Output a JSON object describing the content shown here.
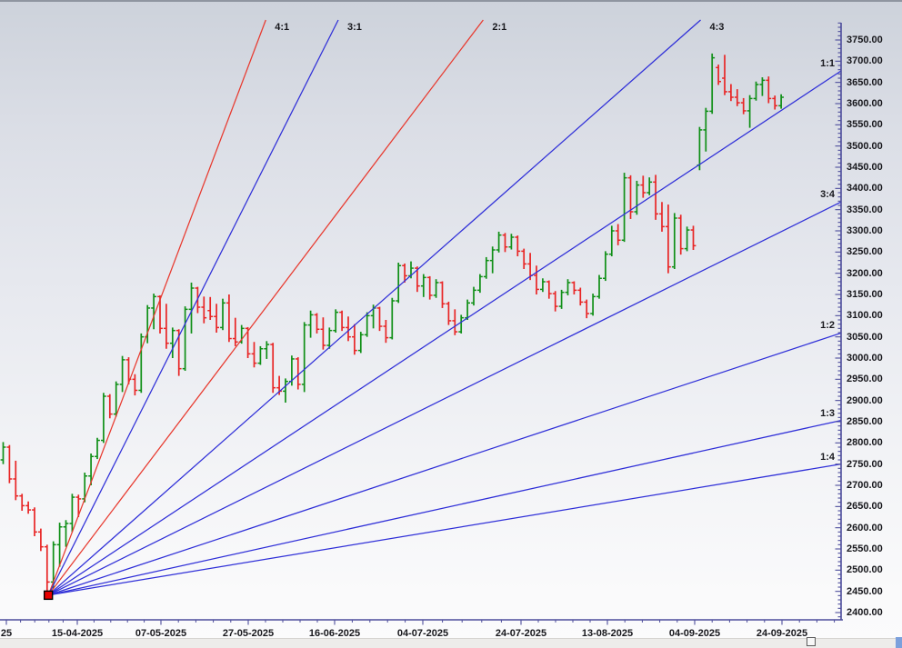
{
  "window": {
    "kind": "trading-chart-panel",
    "footer": {
      "handle_icon": "square-outline",
      "corner_accent_color": "#7ba0dc"
    }
  },
  "chart_data": {
    "type": "ohlc-bar",
    "title": "",
    "grid": "off",
    "legend": "none",
    "y_axis": {
      "side": "right",
      "min": 2400,
      "max": 3750,
      "step": 50,
      "tick_format": "2-decimals",
      "labels": [
        "3750.00",
        "3700.00",
        "3650.00",
        "3600.00",
        "3550.00",
        "3500.00",
        "3450.00",
        "3400.00",
        "3350.00",
        "3300.00",
        "3250.00",
        "3200.00",
        "3150.00",
        "3100.00",
        "3050.00",
        "3000.00",
        "2950.00",
        "2900.00",
        "2850.00",
        "2800.00",
        "2750.00",
        "2700.00",
        "2650.00",
        "2600.00",
        "2550.00",
        "2500.00",
        "2450.00",
        "2400.00"
      ]
    },
    "x_axis": {
      "labels": [
        "25",
        "15-04-2025",
        "07-05-2025",
        "27-05-2025",
        "16-06-2025",
        "04-07-2025",
        "24-07-2025",
        "13-08-2025",
        "04-09-2025",
        "24-09-2025"
      ]
    },
    "gann_fan": {
      "origin_price": 2441,
      "origin_bar_index": 7.2,
      "unit_points_per_bar": 9.78,
      "anchor_marker": {
        "shape": "square",
        "fill": "#e80000",
        "stroke": "#000000"
      },
      "rays": [
        {
          "label": "4:1",
          "ratio": 4.0,
          "color": "#e8392e"
        },
        {
          "label": "3:1",
          "ratio": 3.0,
          "color": "#2f2fd8"
        },
        {
          "label": "2:1",
          "ratio": 2.0,
          "color": "#e8392e"
        },
        {
          "label": "4:3",
          "ratio": 1.3333,
          "color": "#2f2fd8"
        },
        {
          "label": "1:1",
          "ratio": 1.0,
          "color": "#2f2fd8"
        },
        {
          "label": "3:4",
          "ratio": 0.75,
          "color": "#2f2fd8"
        },
        {
          "label": "1:2",
          "ratio": 0.5,
          "color": "#2f2fd8"
        },
        {
          "label": "1:3",
          "ratio": 0.3333,
          "color": "#2f2fd8"
        },
        {
          "label": "1:4",
          "ratio": 0.25,
          "color": "#2f2fd8"
        }
      ]
    },
    "colors": {
      "up": "#0f8f16",
      "down": "#e82525",
      "axis": "#4d4d9c",
      "tick_text": "#17171c"
    },
    "bars_ohlc": [
      [
        2760,
        2802,
        2750,
        2790
      ],
      [
        2790,
        2795,
        2705,
        2715
      ],
      [
        2715,
        2758,
        2665,
        2675
      ],
      [
        2675,
        2680,
        2640,
        2652
      ],
      [
        2652,
        2662,
        2633,
        2642
      ],
      [
        2642,
        2648,
        2580,
        2590
      ],
      [
        2590,
        2598,
        2545,
        2555
      ],
      [
        2555,
        2560,
        2448,
        2472
      ],
      [
        2472,
        2568,
        2456,
        2560
      ],
      [
        2560,
        2612,
        2508,
        2602
      ],
      [
        2602,
        2618,
        2555,
        2610
      ],
      [
        2610,
        2680,
        2590,
        2672
      ],
      [
        2672,
        2678,
        2625,
        2668
      ],
      [
        2668,
        2730,
        2660,
        2722
      ],
      [
        2722,
        2775,
        2700,
        2768
      ],
      [
        2768,
        2812,
        2762,
        2806
      ],
      [
        2806,
        2918,
        2800,
        2910
      ],
      [
        2910,
        2915,
        2858,
        2868
      ],
      [
        2868,
        2945,
        2862,
        2938
      ],
      [
        2938,
        3005,
        2920,
        2996
      ],
      [
        2996,
        3002,
        2938,
        2950
      ],
      [
        2950,
        2962,
        2912,
        2924
      ],
      [
        2924,
        3058,
        2918,
        3050
      ],
      [
        3050,
        3125,
        3035,
        3118
      ],
      [
        3118,
        3152,
        3068,
        3145
      ],
      [
        3145,
        3148,
        3058,
        3070
      ],
      [
        3070,
        3128,
        3022,
        3035
      ],
      [
        3035,
        3072,
        3000,
        3065
      ],
      [
        3065,
        3068,
        2958,
        2975
      ],
      [
        2975,
        3122,
        2970,
        3115
      ],
      [
        3115,
        3178,
        3058,
        3165
      ],
      [
        3165,
        3168,
        3106,
        3120
      ],
      [
        3120,
        3145,
        3082,
        3095
      ],
      [
        3112,
        3144,
        3090,
        3098
      ],
      [
        3098,
        3128,
        3060,
        3072
      ],
      [
        3072,
        3140,
        3066,
        3130
      ],
      [
        3130,
        3150,
        3038,
        3046
      ],
      [
        3046,
        3095,
        3028,
        3038
      ],
      [
        3038,
        3078,
        3034,
        3070
      ],
      [
        3070,
        3073,
        3000,
        3010
      ],
      [
        3010,
        3038,
        2978,
        2988
      ],
      [
        2988,
        3028,
        2984,
        3022
      ],
      [
        3022,
        3040,
        2998,
        3032
      ],
      [
        3032,
        3036,
        2918,
        2930
      ],
      [
        2930,
        2958,
        2913,
        2922
      ],
      [
        2922,
        2952,
        2895,
        2945
      ],
      [
        2945,
        3006,
        2935,
        2998
      ],
      [
        2998,
        3002,
        2926,
        2938
      ],
      [
        2938,
        3085,
        2920,
        3078
      ],
      [
        3078,
        3112,
        3048,
        3102
      ],
      [
        3102,
        3106,
        3058,
        3068
      ],
      [
        3068,
        3096,
        3020,
        3030
      ],
      [
        3030,
        3072,
        3022,
        3065
      ],
      [
        3065,
        3115,
        3060,
        3108
      ],
      [
        3108,
        3112,
        3064,
        3072
      ],
      [
        3072,
        3098,
        3040,
        3050
      ],
      [
        3050,
        3080,
        3008,
        3018
      ],
      [
        3018,
        3062,
        3012,
        3055
      ],
      [
        3055,
        3108,
        3050,
        3100
      ],
      [
        3100,
        3126,
        3070,
        3118
      ],
      [
        3118,
        3121,
        3064,
        3075
      ],
      [
        3075,
        3090,
        3036,
        3048
      ],
      [
        3048,
        3142,
        3044,
        3135
      ],
      [
        3135,
        3225,
        3130,
        3218
      ],
      [
        3218,
        3223,
        3178,
        3194
      ],
      [
        3194,
        3228,
        3188,
        3212
      ],
      [
        3212,
        3216,
        3156,
        3170
      ],
      [
        3170,
        3198,
        3144,
        3190
      ],
      [
        3190,
        3193,
        3138,
        3148
      ],
      [
        3148,
        3186,
        3142,
        3178
      ],
      [
        3178,
        3181,
        3118,
        3128
      ],
      [
        3128,
        3133,
        3078,
        3088
      ],
      [
        3088,
        3115,
        3054,
        3062
      ],
      [
        3062,
        3102,
        3058,
        3095
      ],
      [
        3095,
        3138,
        3090,
        3130
      ],
      [
        3130,
        3168,
        3124,
        3160
      ],
      [
        3160,
        3198,
        3154,
        3192
      ],
      [
        3192,
        3238,
        3187,
        3230
      ],
      [
        3230,
        3263,
        3200,
        3255
      ],
      [
        3255,
        3298,
        3249,
        3290
      ],
      [
        3290,
        3295,
        3250,
        3262
      ],
      [
        3262,
        3293,
        3256,
        3285
      ],
      [
        3285,
        3289,
        3240,
        3252
      ],
      [
        3252,
        3258,
        3210,
        3222
      ],
      [
        3222,
        3248,
        3184,
        3195
      ],
      [
        3195,
        3218,
        3150,
        3162
      ],
      [
        3162,
        3188,
        3156,
        3180
      ],
      [
        3180,
        3183,
        3140,
        3152
      ],
      [
        3152,
        3158,
        3110,
        3122
      ],
      [
        3122,
        3161,
        3116,
        3155
      ],
      [
        3155,
        3186,
        3148,
        3178
      ],
      [
        3178,
        3181,
        3150,
        3160
      ],
      [
        3160,
        3166,
        3124,
        3132
      ],
      [
        3132,
        3138,
        3094,
        3105
      ],
      [
        3105,
        3152,
        3100,
        3145
      ],
      [
        3145,
        3196,
        3140,
        3188
      ],
      [
        3188,
        3252,
        3182,
        3245
      ],
      [
        3245,
        3312,
        3240,
        3300
      ],
      [
        3300,
        3316,
        3266,
        3278
      ],
      [
        3278,
        3437,
        3274,
        3425
      ],
      [
        3425,
        3431,
        3328,
        3345
      ],
      [
        3345,
        3418,
        3338,
        3408
      ],
      [
        3408,
        3430,
        3378,
        3390
      ],
      [
        3390,
        3426,
        3384,
        3415
      ],
      [
        3415,
        3432,
        3326,
        3340
      ],
      [
        3340,
        3368,
        3298,
        3310
      ],
      [
        3310,
        3362,
        3200,
        3215
      ],
      [
        3215,
        3342,
        3210,
        3330
      ],
      [
        3330,
        3338,
        3244,
        3258
      ],
      [
        3258,
        3310,
        3252,
        3302
      ],
      [
        3302,
        3312,
        3255,
        3265
      ],
      [
        3455,
        3545,
        3443,
        3538
      ],
      [
        3538,
        3590,
        3487,
        3582
      ],
      [
        3582,
        3718,
        3576,
        3708
      ],
      [
        3685,
        3692,
        3644,
        3652
      ],
      [
        3660,
        3715,
        3620,
        3628
      ],
      [
        3628,
        3646,
        3606,
        3615
      ],
      [
        3615,
        3634,
        3594,
        3602
      ],
      [
        3602,
        3613,
        3575,
        3583
      ],
      [
        3583,
        3620,
        3543,
        3612
      ],
      [
        3612,
        3652,
        3607,
        3645
      ],
      [
        3645,
        3662,
        3618,
        3655
      ],
      [
        3655,
        3664,
        3601,
        3612
      ],
      [
        3612,
        3619,
        3586,
        3595
      ],
      [
        3595,
        3622,
        3588,
        3615
      ]
    ]
  }
}
